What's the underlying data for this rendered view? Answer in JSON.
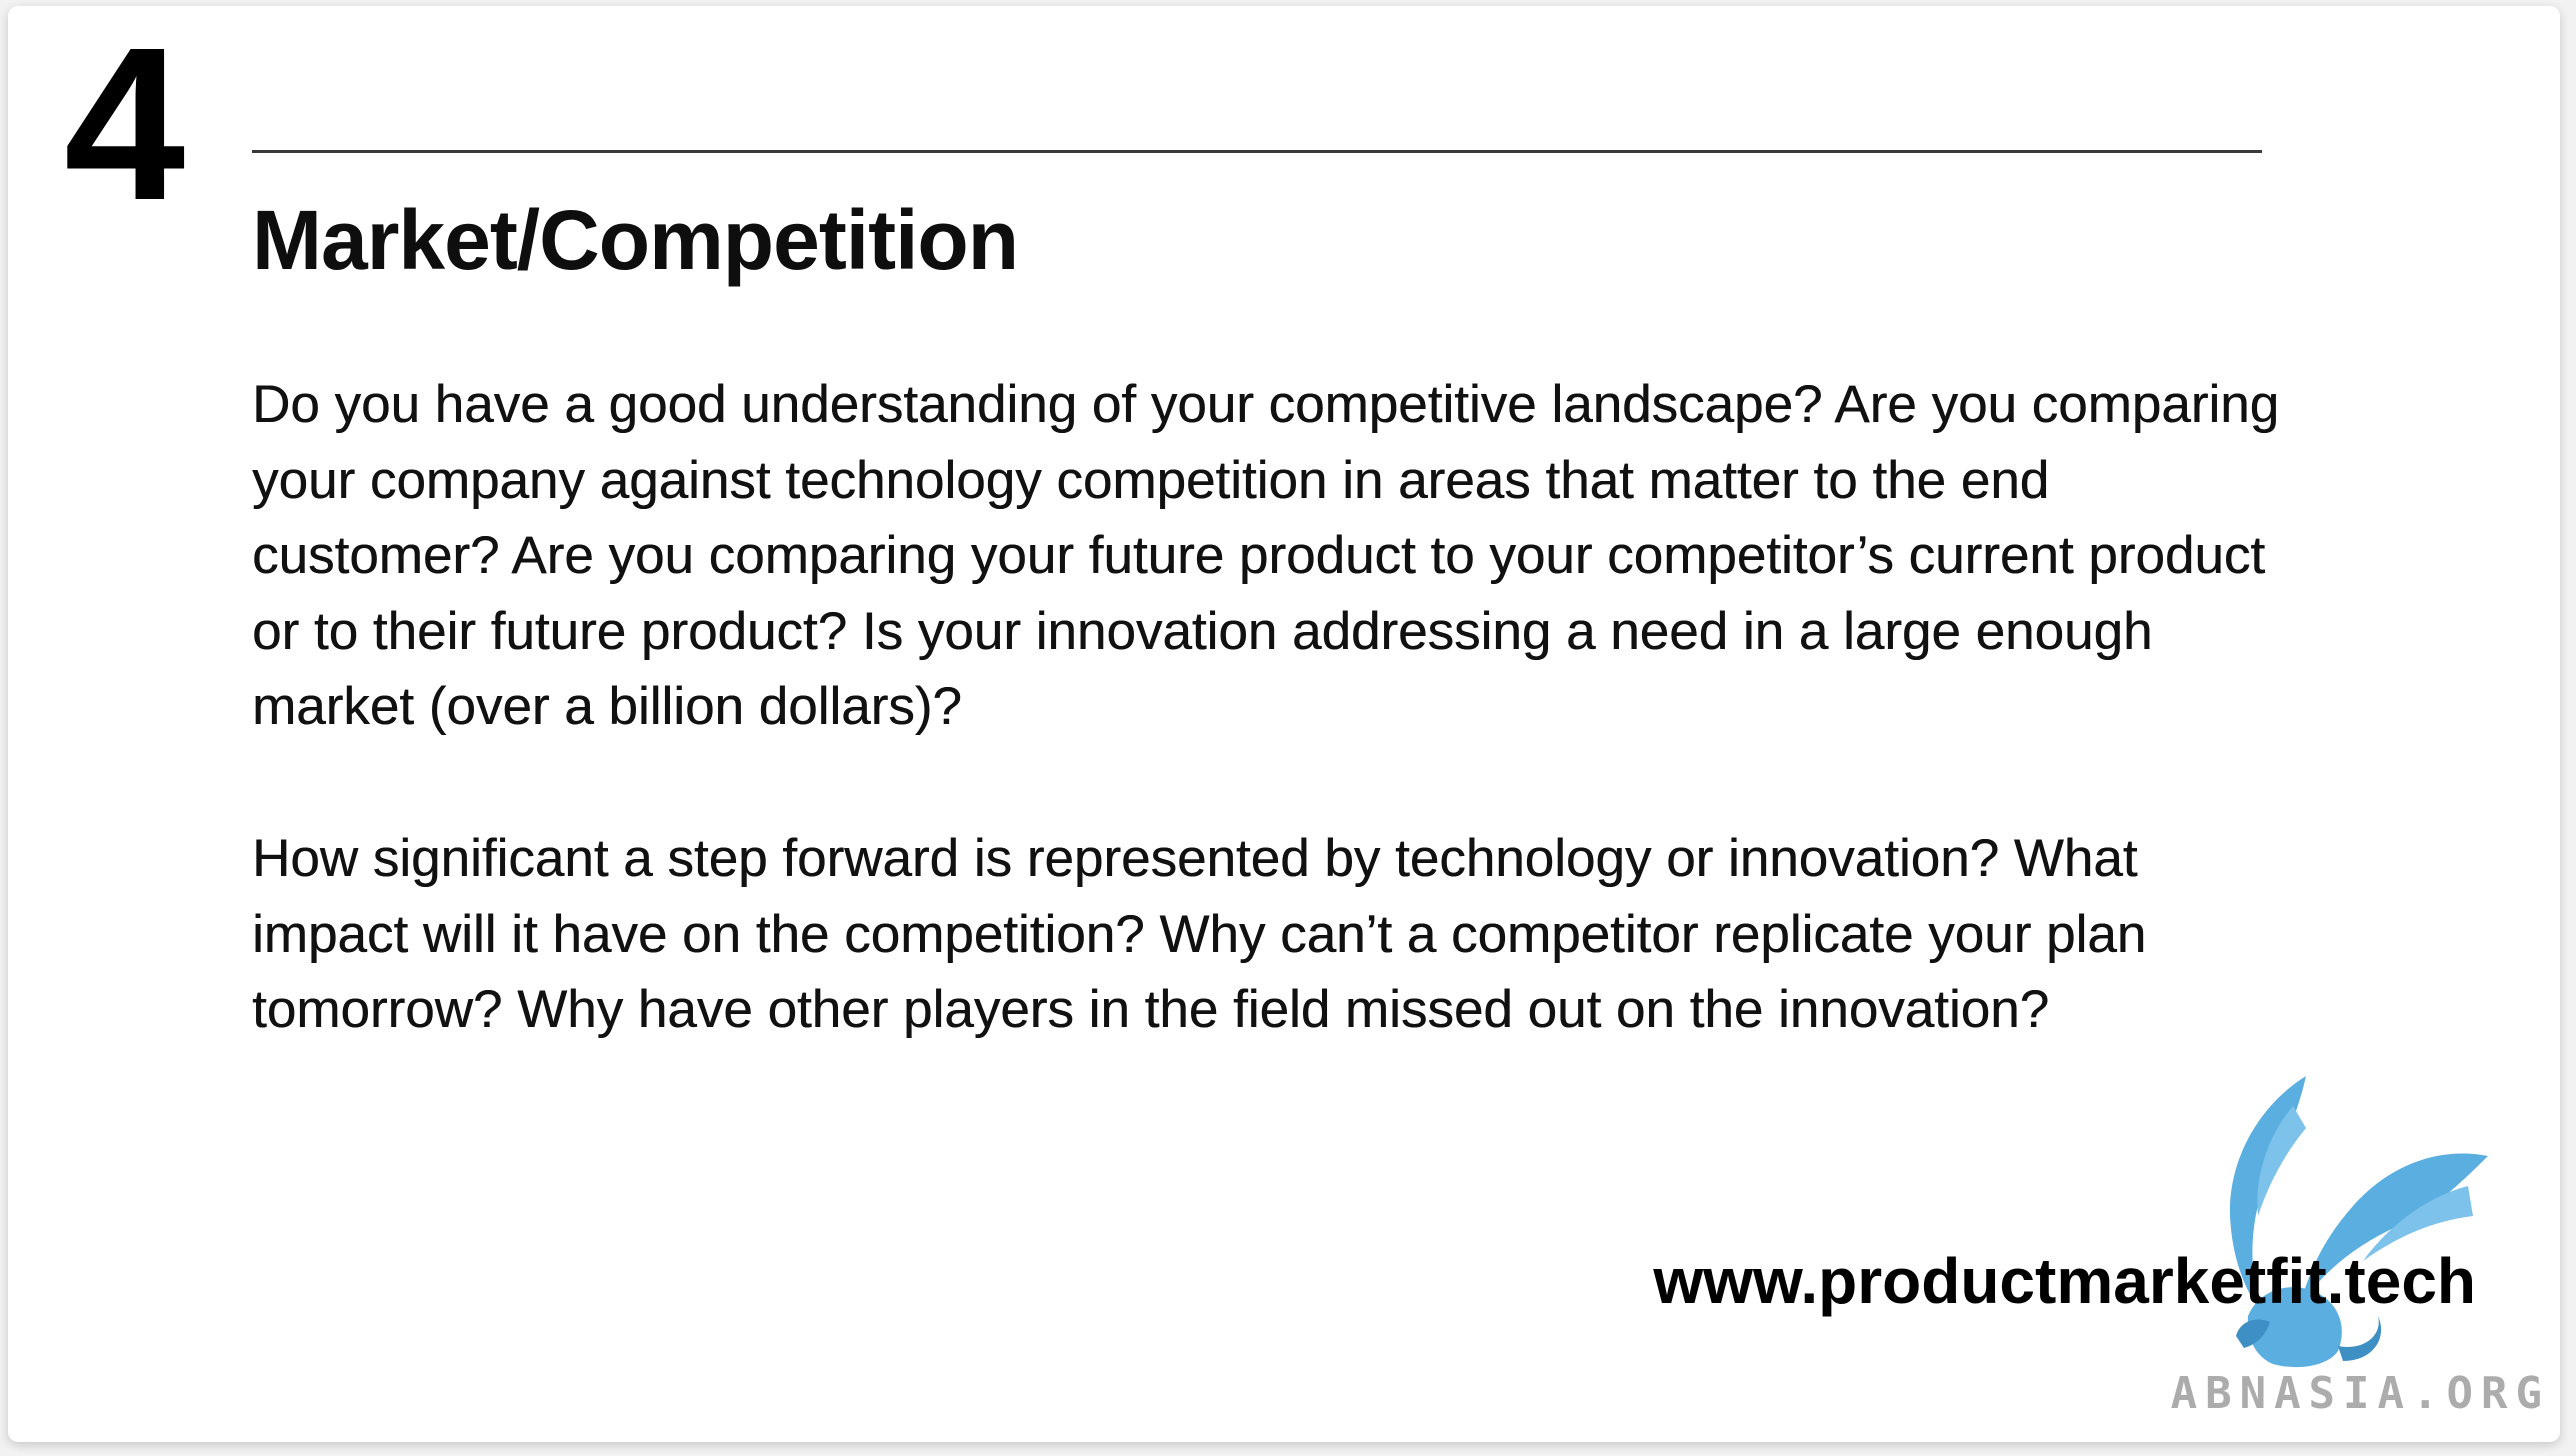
{
  "slide": {
    "section_number": "4",
    "title": "Market/Competition",
    "paragraphs": [
      "Do you have a good understanding of your competitive landscape? Are you comparing your company against technology competition in areas that matter to the end customer? Are you comparing your future product to your competitor’s current product or to their future product? Is your innovation addressing a need in a large enough market (over a billion dollars)?",
      "How significant a step forward is represented by technology or innovation? What impact will it have on the competition? Why can’t a competitor replicate your plan tomorrow? Why have other players in the field missed out on the innovation?"
    ]
  },
  "footer": {
    "url": "www.productmarketfit.tech",
    "watermark": "ABNASIA.ORG",
    "logo_icon": "winged-griffin-icon"
  },
  "colors": {
    "text": "#111111",
    "logo_blue": "#5aaee0",
    "watermark_gray": "#9e9e9e"
  }
}
